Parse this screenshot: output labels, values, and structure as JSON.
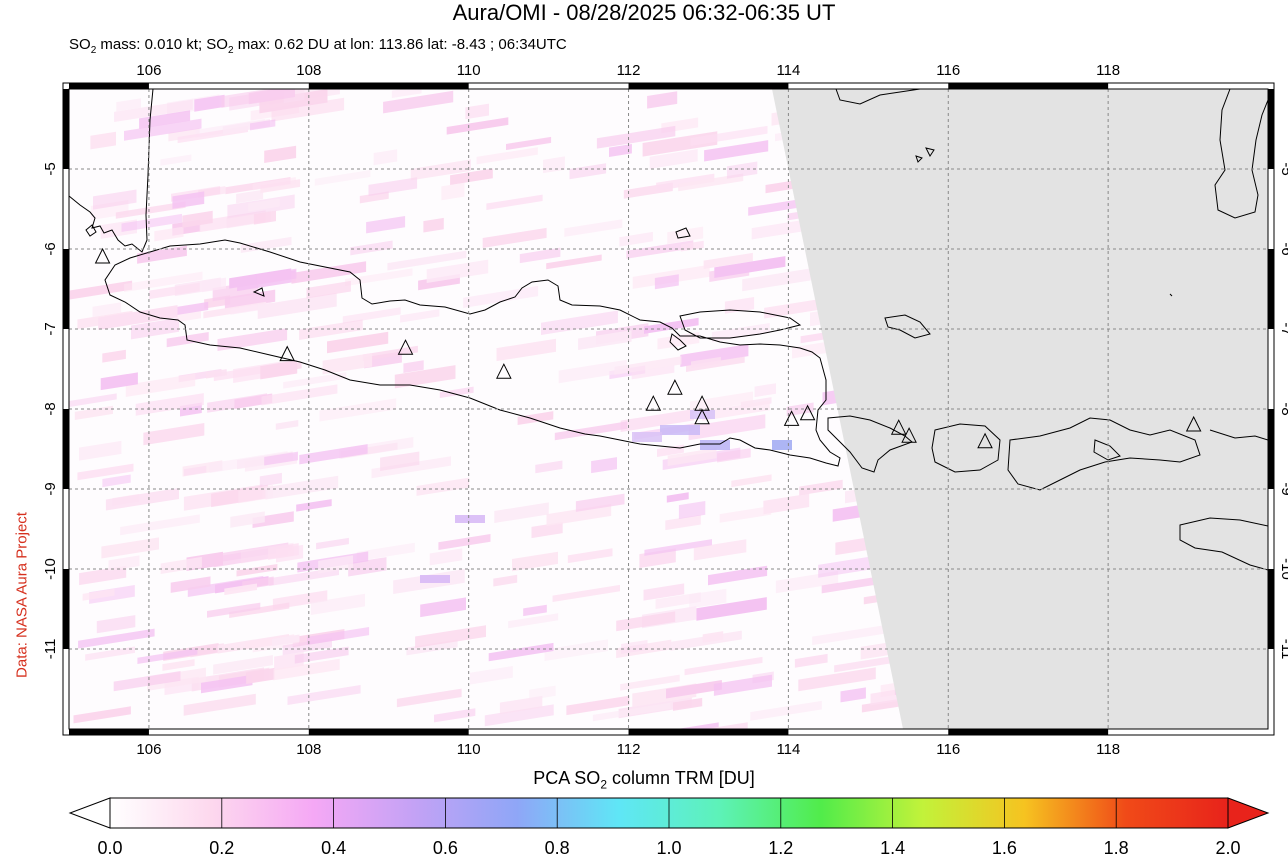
{
  "header": {
    "title": "Aura/OMI - 08/28/2025 06:32-06:35 UT",
    "subtitle_prefix": "SO",
    "subtitle_sub": "2",
    "subtitle_mid": " mass: 0.010 kt; SO",
    "subtitle_sub2": "2",
    "subtitle_rest": " max: 0.62 DU at lon: 113.86 lat: -8.43 ; 06:34UTC"
  },
  "credit": "Data: NASA Aura Project",
  "map": {
    "lon_range": [
      105,
      120
    ],
    "lat_range": [
      -12,
      -4
    ],
    "lon_ticks": [
      "106",
      "108",
      "110",
      "112",
      "114",
      "116",
      "118"
    ],
    "lat_ticks": [
      "-5",
      "-6",
      "-7",
      "-8",
      "-9",
      "-10",
      "-11"
    ],
    "volcanoes": [
      [
        105.42,
        -6.1
      ],
      [
        107.73,
        -7.32
      ],
      [
        109.21,
        -7.24
      ],
      [
        110.44,
        -7.54
      ],
      [
        112.31,
        -7.94
      ],
      [
        112.58,
        -7.74
      ],
      [
        112.92,
        -7.94
      ],
      [
        112.92,
        -8.11
      ],
      [
        114.04,
        -8.13
      ],
      [
        114.24,
        -8.06
      ],
      [
        115.38,
        -8.24
      ],
      [
        115.51,
        -8.34
      ],
      [
        116.46,
        -8.41
      ],
      [
        119.07,
        -8.2
      ]
    ],
    "no_data_color": "#e3e3e3"
  },
  "colorbar": {
    "title_prefix": "PCA SO",
    "title_sub": "2",
    "title_rest": " column TRM [DU]",
    "labels": [
      "0.0",
      "0.2",
      "0.4",
      "0.6",
      "0.8",
      "1.0",
      "1.2",
      "1.4",
      "1.6",
      "1.8",
      "2.0"
    ],
    "stops": [
      "#ffffff",
      "#fdd8ee",
      "#f5a8f5",
      "#c3a2f5",
      "#8fa6f7",
      "#5fe6f6",
      "#5df2b8",
      "#51ec4a",
      "#c2f23a",
      "#f6c320",
      "#f04a18",
      "#e8231b"
    ]
  }
}
